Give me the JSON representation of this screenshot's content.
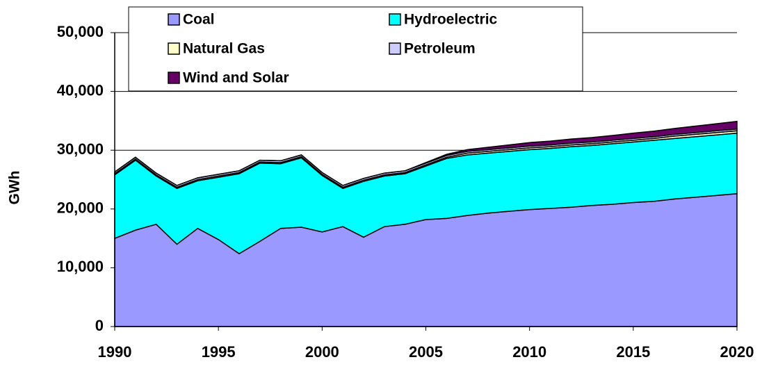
{
  "chart_data": {
    "type": "stacked-area",
    "y_label": "GWh",
    "x": [
      1990,
      1991,
      1992,
      1993,
      1994,
      1995,
      1996,
      1997,
      1998,
      1999,
      2000,
      2001,
      2002,
      2003,
      2004,
      2005,
      2006,
      2007,
      2008,
      2009,
      2010,
      2011,
      2012,
      2013,
      2014,
      2015,
      2016,
      2017,
      2018,
      2019,
      2020
    ],
    "series": [
      {
        "name": "Coal",
        "color": "#9999ff",
        "values": [
          15000,
          16400,
          17400,
          14000,
          16700,
          14800,
          12400,
          14500,
          16700,
          16900,
          16100,
          17000,
          15200,
          17000,
          17400,
          18200,
          18400,
          18900,
          19300,
          19600,
          19900,
          20100,
          20300,
          20600,
          20800,
          21100,
          21300,
          21700,
          22000,
          22300,
          22600
        ]
      },
      {
        "name": "Hydroelectric",
        "color": "#00ffff",
        "values": [
          10800,
          11900,
          8200,
          9500,
          8100,
          10600,
          13600,
          13300,
          11000,
          11800,
          9600,
          6500,
          9500,
          8600,
          8600,
          9100,
          10200,
          10300,
          10200,
          10200,
          10200,
          10200,
          10300,
          10200,
          10300,
          10300,
          10400,
          10300,
          10300,
          10300,
          10300
        ]
      },
      {
        "name": "Natural Gas",
        "color": "#ffffcc",
        "values": [
          200,
          200,
          200,
          200,
          200,
          200,
          200,
          200,
          200,
          200,
          200,
          200,
          200,
          200,
          200,
          200,
          200,
          300,
          300,
          300,
          300,
          300,
          300,
          300,
          300,
          300,
          300,
          400,
          400,
          400,
          400
        ]
      },
      {
        "name": "Petroleum",
        "color": "#ccccff",
        "values": [
          300,
          300,
          300,
          300,
          300,
          300,
          300,
          300,
          300,
          300,
          300,
          300,
          300,
          300,
          300,
          300,
          300,
          300,
          300,
          300,
          300,
          300,
          300,
          300,
          300,
          300,
          300,
          300,
          300,
          300,
          300
        ]
      },
      {
        "name": "Wind and Solar",
        "color": "#660066",
        "values": [
          0,
          0,
          0,
          0,
          0,
          0,
          0,
          0,
          0,
          0,
          0,
          0,
          0,
          0,
          0,
          100,
          200,
          300,
          400,
          500,
          600,
          650,
          700,
          750,
          800,
          900,
          950,
          1000,
          1100,
          1200,
          1300
        ]
      }
    ],
    "xlim": [
      1990,
      2020
    ],
    "xticks": [
      1990,
      1995,
      2000,
      2005,
      2010,
      2015,
      2020
    ],
    "ylim": [
      0,
      50000
    ],
    "yticks": [
      0,
      {
        "value": 10000,
        "label": "10,000"
      },
      {
        "value": 20000,
        "label": "20,000"
      },
      {
        "value": 30000,
        "label": "30,000"
      },
      {
        "value": 40000,
        "label": "40,000"
      },
      {
        "value": 50000,
        "label": "50,000"
      }
    ],
    "grid": true
  }
}
